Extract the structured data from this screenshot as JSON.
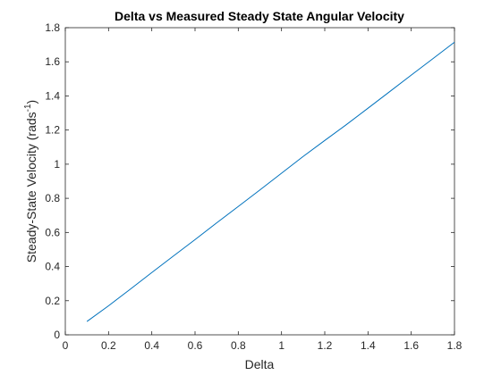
{
  "chart_data": {
    "type": "line",
    "title": "Delta vs Measured Steady State Angular Velocity",
    "xlabel": "Delta",
    "ylabel": {
      "main": "Steady-State Velocity (rads",
      "sup": "-1",
      "close": ")"
    },
    "xlim": [
      0,
      1.8
    ],
    "ylim": [
      0,
      1.8
    ],
    "xticks": [
      0,
      0.2,
      0.4,
      0.6,
      0.8,
      1,
      1.2,
      1.4,
      1.6,
      1.8
    ],
    "xtick_labels": [
      "0",
      "0.2",
      "0.4",
      "0.6",
      "0.8",
      "1",
      "1.2",
      "1.4",
      "1.6",
      "1.8"
    ],
    "yticks": [
      0,
      0.2,
      0.4,
      0.6,
      0.8,
      1,
      1.2,
      1.4,
      1.6,
      1.8
    ],
    "ytick_labels": [
      "0",
      "0.2",
      "0.4",
      "0.6",
      "0.8",
      "1",
      "1.2",
      "1.4",
      "1.6",
      "1.8"
    ],
    "grid": false,
    "series": [
      {
        "x": [
          0.1,
          0.2,
          0.3,
          0.4,
          0.5,
          0.6,
          0.7,
          0.8,
          0.9,
          1.0,
          1.1,
          1.2,
          1.3,
          1.4,
          1.5,
          1.6,
          1.7,
          1.8
        ],
        "values": [
          0.078,
          0.17,
          0.267,
          0.365,
          0.462,
          0.558,
          0.656,
          0.752,
          0.849,
          0.947,
          1.045,
          1.139,
          1.232,
          1.328,
          1.425,
          1.522,
          1.618,
          1.715
        ],
        "color": "#0072BD"
      }
    ]
  }
}
